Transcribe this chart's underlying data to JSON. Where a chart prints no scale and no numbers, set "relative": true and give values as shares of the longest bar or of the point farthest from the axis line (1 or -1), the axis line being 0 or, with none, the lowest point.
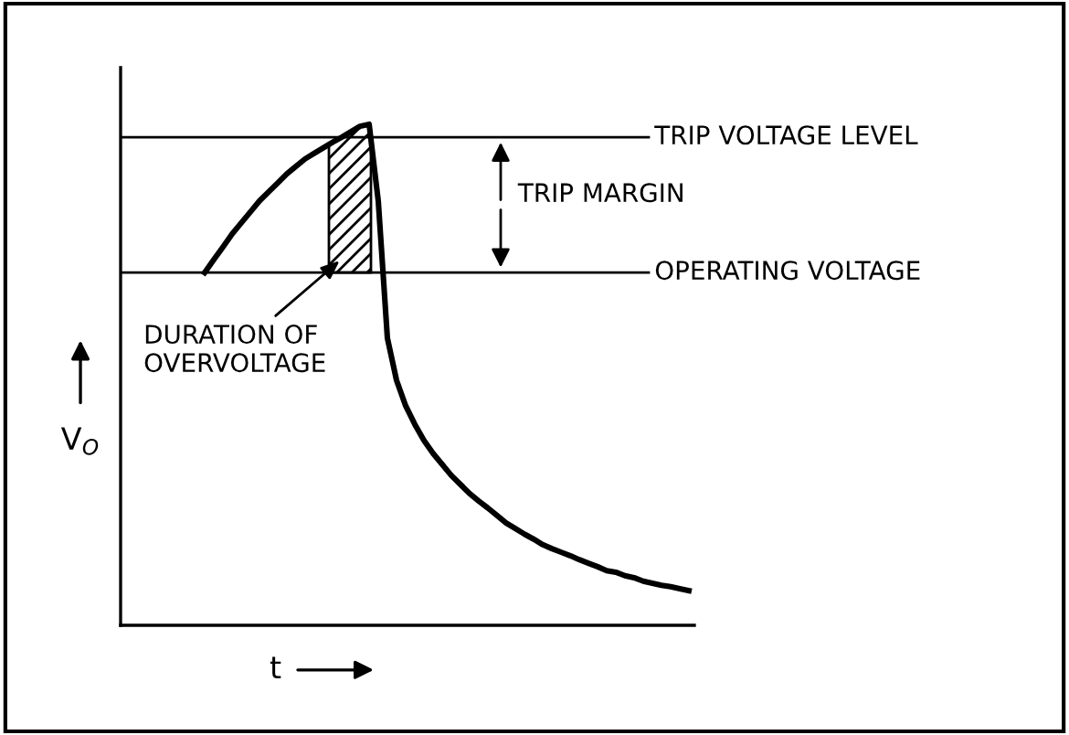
{
  "chart_data": {
    "type": "line",
    "relative": true,
    "xlabel": "t",
    "ylabel": "V$_{O}$",
    "categories": [
      null,
      null,
      null,
      null,
      null,
      null,
      null,
      null,
      null,
      null,
      null,
      null,
      null,
      null,
      null,
      null,
      null,
      null,
      null,
      null,
      null,
      null,
      null,
      null,
      null,
      null,
      null,
      null,
      null,
      null,
      null,
      null,
      null,
      null,
      null,
      null,
      null,
      null,
      null,
      null,
      null,
      null,
      null,
      null,
      null,
      null,
      null,
      null,
      null,
      null,
      null,
      null,
      null,
      null
    ],
    "series": [
      {
        "color": "#000000",
        "values": [
          0.704,
          0.73,
          0.755,
          0.781,
          0.803,
          0.825,
          0.847,
          0.865,
          0.883,
          0.901,
          0.916,
          0.931,
          0.942,
          0.953,
          0.964,
          0.974,
          0.985,
          0.996,
          1.0,
          0.847,
          0.573,
          0.489,
          0.438,
          0.401,
          0.369,
          0.343,
          0.321,
          0.299,
          0.281,
          0.263,
          0.248,
          0.234,
          0.219,
          0.204,
          0.193,
          0.182,
          0.172,
          0.161,
          0.153,
          0.146,
          0.139,
          0.131,
          0.124,
          0.117,
          0.109,
          0.106,
          0.099,
          0.095,
          0.088,
          0.084,
          0.08,
          0.077,
          0.073,
          0.069
        ]
      }
    ],
    "ref_lines": [
      {
        "axis": "y",
        "value": 0.974,
        "label": "TRIP VOLTAGE LEVEL",
        "color": "#000000"
      },
      {
        "axis": "y",
        "value": 0.704,
        "label": "OPERATING VOLTAGE",
        "color": "#000000"
      }
    ],
    "annotations": [
      "TRIP MARGIN",
      "DURATION OF\nOVERVOLTAGE"
    ],
    "line_style": "solid"
  }
}
